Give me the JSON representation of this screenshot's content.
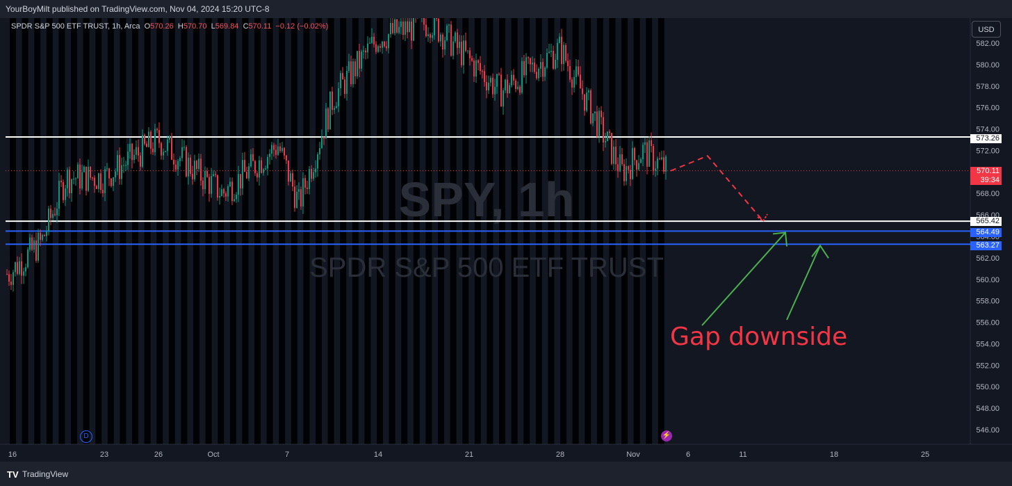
{
  "header": {
    "published": "YourBoyMilt published on TradingView.com, Nov 04, 2024 15:20 UTC-8"
  },
  "legend": {
    "symbol": "SPDR S&P 500 ETF TRUST, 1h, Arca",
    "open_label": "O",
    "open": "570.26",
    "high_label": "H",
    "high": "570.70",
    "low_label": "L",
    "low": "569.84",
    "close_label": "C",
    "close": "570.11",
    "change": "−0.12 (−0.02%)"
  },
  "watermark": {
    "ticker": "SPY, 1h",
    "name": "SPDR S&P 500 ETF TRUST"
  },
  "currency_button": "USD",
  "annotation": "Gap downside",
  "icons": {
    "dividend": "D",
    "dividend_icon": "dividend-icon",
    "earnings_icon": "lightning-icon"
  },
  "footer": {
    "brand": "TradingView",
    "logo": "tradingview-logo"
  },
  "colors": {
    "background": "#131722",
    "session_band": "#000000",
    "up": "#089981",
    "down": "#f23645",
    "white_level": "#ffffff",
    "blue_level": "#2962ff",
    "arrow_green": "#4caf50",
    "current_price": "#f23645"
  },
  "price_boxes": [
    {
      "value": "573.26",
      "style": "white"
    },
    {
      "value": "570.11",
      "sub": "39:34",
      "style": "red"
    },
    {
      "value": "565.42",
      "style": "white"
    },
    {
      "value": "564.49",
      "style": "blue"
    },
    {
      "value": "563.27",
      "style": "blue"
    }
  ],
  "chart_data": {
    "type": "candlestick",
    "symbol": "SPY",
    "interval": "1h",
    "ylim": [
      544.5,
      584.5
    ],
    "y_ticks": [
      "582.00",
      "580.00",
      "578.00",
      "576.00",
      "574.00",
      "572.00",
      "570.00",
      "568.00",
      "566.00",
      "564.00",
      "562.00",
      "560.00",
      "558.00",
      "556.00",
      "554.00",
      "552.00",
      "550.00",
      "548.00",
      "546.00"
    ],
    "x_ticks": [
      "16",
      "23",
      "26",
      "Oct",
      "7",
      "14",
      "21",
      "28",
      "Nov",
      "6",
      "11",
      "18",
      "25"
    ],
    "horizontal_levels": [
      {
        "price": 573.26,
        "color": "white"
      },
      {
        "price": 565.42,
        "color": "white"
      },
      {
        "price": 564.49,
        "color": "blue"
      },
      {
        "price": 563.27,
        "color": "blue"
      }
    ],
    "current_price": 570.11,
    "countdown": "39:34",
    "price_path_approx": [
      {
        "date": "Sep 16",
        "price": 560.5
      },
      {
        "date": "Sep 18",
        "price": 563.5
      },
      {
        "date": "Sep 19",
        "price": 569.5
      },
      {
        "date": "Sep 23",
        "price": 569.5
      },
      {
        "date": "Sep 26",
        "price": 573.0
      },
      {
        "date": "Oct 1",
        "price": 568.0
      },
      {
        "date": "Oct 4",
        "price": 572.5
      },
      {
        "date": "Oct 7",
        "price": 567.0
      },
      {
        "date": "Oct 10",
        "price": 577.0
      },
      {
        "date": "Oct 14",
        "price": 582.5
      },
      {
        "date": "Oct 18",
        "price": 584.0
      },
      {
        "date": "Oct 23",
        "price": 577.5
      },
      {
        "date": "Oct 28",
        "price": 581.5
      },
      {
        "date": "Oct 31",
        "price": 570.0
      },
      {
        "date": "Nov 1",
        "price": 572.0
      },
      {
        "date": "Nov 4",
        "price": 570.11
      }
    ],
    "projection": [
      {
        "date": "Nov 4",
        "price": 570.11
      },
      {
        "date": "Nov 7",
        "price": 571.5
      },
      {
        "date": "Nov 13",
        "price": 565.42
      }
    ]
  }
}
